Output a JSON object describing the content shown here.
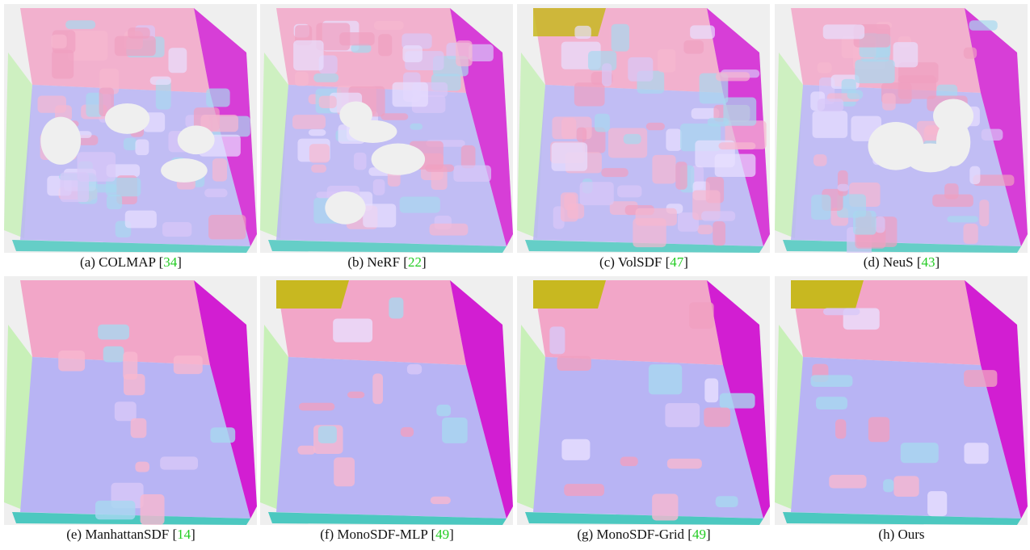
{
  "figure": {
    "panels": [
      {
        "caption": {
          "text": "(a) COLMAP [",
          "ref": "34",
          "close": "]"
        }
      },
      {
        "caption": {
          "text": "(b) NeRF [",
          "ref": "22",
          "close": "]"
        }
      },
      {
        "caption": {
          "text": "(c) VolSDF [",
          "ref": "47",
          "close": "]"
        }
      },
      {
        "caption": {
          "text": "(d) NeuS [",
          "ref": "43",
          "close": "]"
        }
      },
      {
        "caption": {
          "text": "(e) ManhattanSDF [",
          "ref": "14",
          "close": "]"
        }
      },
      {
        "caption": {
          "text": "(f) MonoSDF-MLP [",
          "ref": "49",
          "close": "]"
        }
      },
      {
        "caption": {
          "text": "(g) MonoSDF-Grid [",
          "ref": "49",
          "close": "]"
        }
      },
      {
        "caption": {
          "text": "(h) Ours"
        }
      }
    ]
  }
}
